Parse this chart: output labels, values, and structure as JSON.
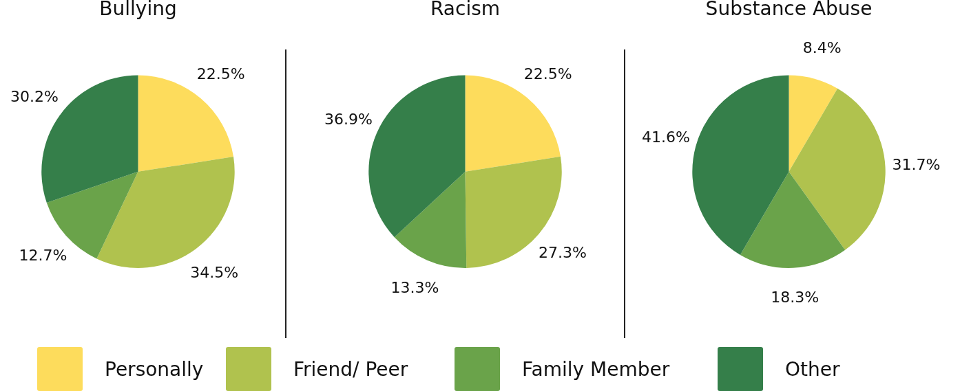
{
  "chart_data": [
    {
      "type": "pie",
      "title": "Bullying",
      "categories": [
        "Personally",
        "Friend/ Peer",
        "Family Member",
        "Other"
      ],
      "values": [
        22.5,
        34.5,
        12.7,
        30.2
      ],
      "colors": [
        "#fddc5c",
        "#b0c24e",
        "#6aa34a",
        "#357f4a"
      ],
      "value_labels": [
        "22.5%",
        "34.5%",
        "12.7%",
        "30.2%"
      ],
      "legend": "bottom"
    },
    {
      "type": "pie",
      "title": "Racism",
      "categories": [
        null,
        null,
        null,
        null
      ],
      "values": [
        22.5,
        27.3,
        13.3,
        36.9
      ],
      "colors": [
        "#fddc5c",
        "#b0c24e",
        "#6aa34a",
        "#357f4a"
      ],
      "value_labels": [
        "22.5%",
        "27.3%",
        "13.3%",
        "36.9%"
      ]
    },
    {
      "type": "pie",
      "title": "Substance Abuse",
      "categories": [
        null,
        null,
        null,
        null
      ],
      "values": [
        8.4,
        31.7,
        18.3,
        41.6
      ],
      "colors": [
        "#fddc5c",
        "#b0c24e",
        "#6aa34a",
        "#357f4a"
      ],
      "value_labels": [
        "8.4%",
        "31.7%",
        "18.3%",
        "41.6%"
      ]
    }
  ]
}
